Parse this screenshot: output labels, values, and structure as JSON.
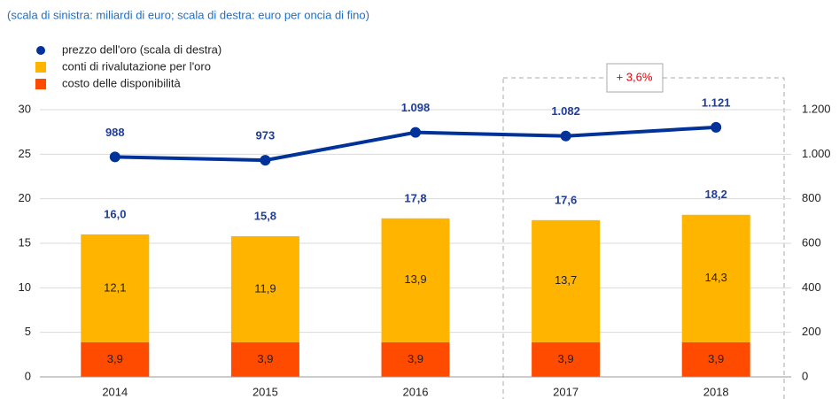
{
  "chart_data": {
    "type": "bar",
    "subtitle": "(scala di sinistra: miliardi di euro; scala di destra: euro per oncia di fino)",
    "categories": [
      "2014",
      "2015",
      "2016",
      "2017",
      "2018"
    ],
    "series": [
      {
        "name": "prezzo dell'oro (scala di destra)",
        "type": "line",
        "axis": "y2",
        "color": "#003299",
        "values": [
          988,
          973,
          1098,
          1082,
          1121
        ],
        "value_labels": [
          "988",
          "973",
          "1.098",
          "1.082",
          "1.121"
        ]
      },
      {
        "name": "conti di rivalutazione per l'oro",
        "type": "bar",
        "color": "#FFB400",
        "values": [
          12.1,
          11.9,
          13.9,
          13.7,
          14.3
        ],
        "value_labels": [
          "12,1",
          "11,9",
          "13,9",
          "13,7",
          "14,3"
        ]
      },
      {
        "name": "costo delle disponibilità",
        "type": "bar",
        "color": "#FF4B00",
        "values": [
          3.9,
          3.9,
          3.9,
          3.9,
          3.9
        ],
        "value_labels": [
          "3,9",
          "3,9",
          "3,9",
          "3,9",
          "3,9"
        ]
      }
    ],
    "totals": {
      "values": [
        16.0,
        15.8,
        17.8,
        17.6,
        18.2
      ],
      "value_labels": [
        "16,0",
        "15,8",
        "17,8",
        "17,6",
        "18,2"
      ]
    },
    "annotation": "+ 3,6%",
    "ylim": [
      0,
      30
    ],
    "yticks": [
      0,
      5,
      10,
      15,
      20,
      25,
      30
    ],
    "y2lim": [
      0,
      1200
    ],
    "y2ticks": [
      0,
      200,
      400,
      600,
      800,
      {
        "value": 1000,
        "label": "1.000"
      },
      {
        "value": 1200,
        "label": "1.200"
      }
    ],
    "grid": true
  }
}
